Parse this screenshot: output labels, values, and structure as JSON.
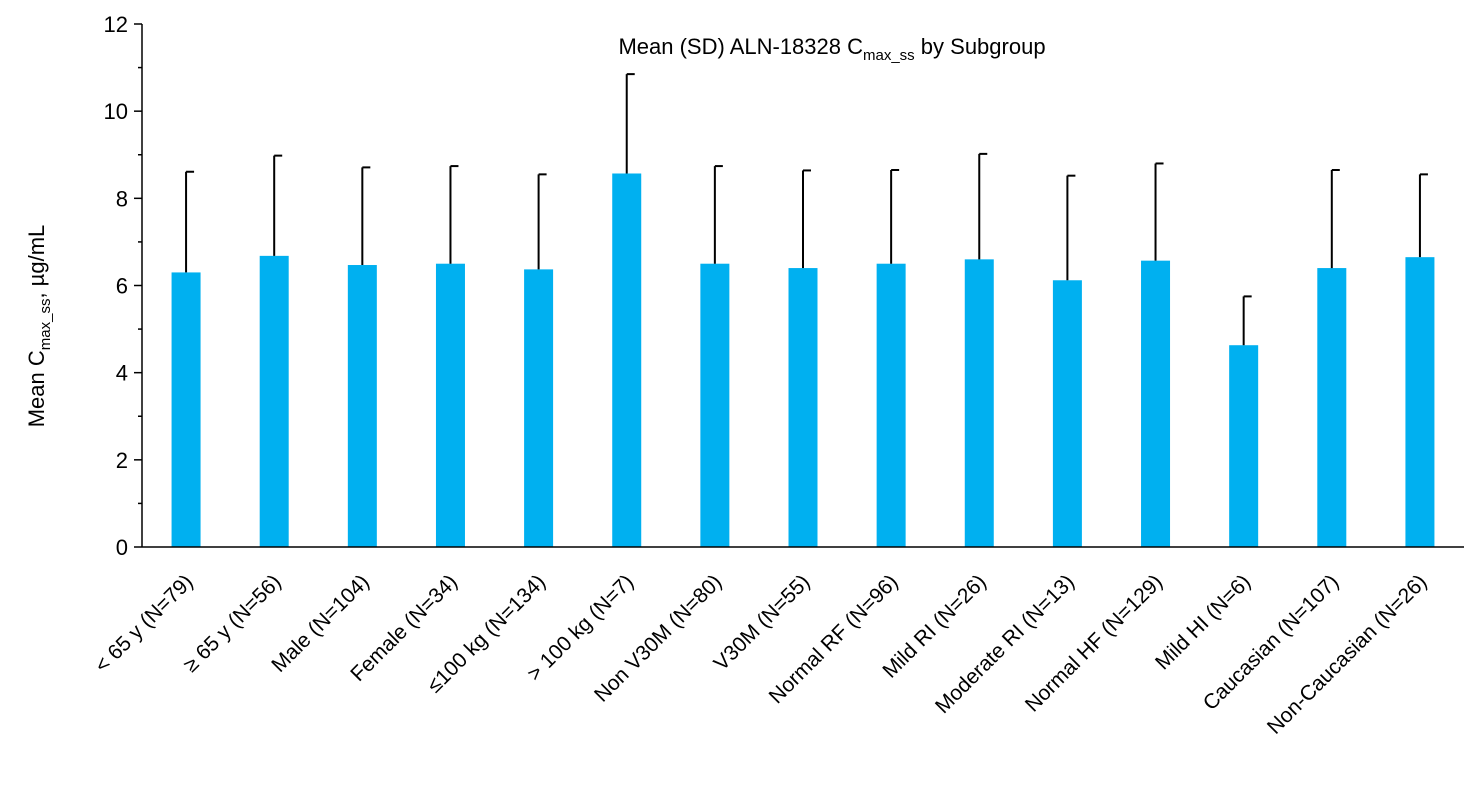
{
  "chart_data": {
    "type": "bar",
    "title": {
      "prefix": "Mean (SD) ALN-18328 C",
      "subscript": "max_ss",
      "suffix": " by Subgroup"
    },
    "ylabel": {
      "prefix": "Mean C",
      "subscript": "max_ss",
      "suffix": ", µg/mL"
    },
    "xlabel": "",
    "ylim": [
      0,
      12
    ],
    "yticks": [
      "0",
      "2",
      "4",
      "6",
      "8",
      "10",
      "12"
    ],
    "grid": false,
    "legend": "none",
    "bar_color": "#00B0F0",
    "error_bar_color": "#000000",
    "categories": [
      "< 65 y (N=79)",
      "≥ 65 y (N=56)",
      "Male (N=104)",
      "Female (N=34)",
      "≤100 kg (N=134)",
      "> 100 kg (N=7)",
      "Non V30M (N=80)",
      "V30M (N=55)",
      "Normal RF (N=96)",
      "Mild RI (N=26)",
      "Moderate RI (N=13)",
      "Normal HF (N=129)",
      "Mild HI (N=6)",
      "Caucasian (N=107)",
      "Non-Caucasian (N=26)"
    ],
    "values": [
      6.3,
      6.68,
      6.47,
      6.5,
      6.37,
      8.57,
      6.5,
      6.4,
      6.5,
      6.6,
      6.12,
      6.57,
      4.63,
      6.4,
      6.65
    ],
    "errors": [
      2.31,
      2.3,
      2.24,
      2.24,
      2.18,
      2.28,
      2.24,
      2.24,
      2.15,
      2.42,
      2.4,
      2.23,
      1.12,
      2.25,
      1.9
    ]
  }
}
